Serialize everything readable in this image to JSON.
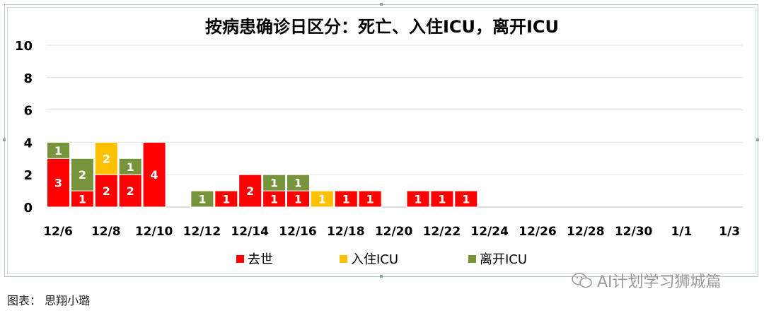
{
  "chart_data": {
    "type": "bar",
    "stacked": true,
    "title": "按病患确诊日区分：死亡、入住ICU，离开ICU",
    "x_tick_labels": [
      "12/6",
      "12/8",
      "12/10",
      "12/12",
      "12/14",
      "12/16",
      "12/18",
      "12/20",
      "12/22",
      "12/24",
      "12/26",
      "12/28",
      "12/30",
      "1/1",
      "1/3"
    ],
    "categories": [
      "12/6",
      "12/7",
      "12/8",
      "12/9",
      "12/10",
      "12/11",
      "12/12",
      "12/13",
      "12/14",
      "12/15",
      "12/16",
      "12/17",
      "12/18",
      "12/19",
      "12/20",
      "12/21",
      "12/22",
      "12/23",
      "12/24",
      "12/25",
      "12/26",
      "12/27",
      "12/28",
      "12/29",
      "12/30",
      "12/31",
      "1/1",
      "1/2",
      "1/3"
    ],
    "series": [
      {
        "name": "去世",
        "color": "#ff0000",
        "values": [
          3,
          1,
          2,
          2,
          4,
          0,
          0,
          1,
          2,
          1,
          1,
          0,
          1,
          1,
          0,
          1,
          1,
          1,
          0,
          0,
          0,
          0,
          0,
          0,
          0,
          0,
          0,
          0,
          0
        ]
      },
      {
        "name": "入住ICU",
        "color": "#ffc000",
        "values": [
          0,
          0,
          2,
          0,
          0,
          0,
          0,
          0,
          0,
          0,
          0,
          1,
          0,
          0,
          0,
          0,
          0,
          0,
          0,
          0,
          0,
          0,
          0,
          0,
          0,
          0,
          0,
          0,
          0
        ]
      },
      {
        "name": "离开ICU",
        "color": "#77933c",
        "values": [
          1,
          2,
          0,
          1,
          0,
          0,
          1,
          0,
          0,
          1,
          1,
          0,
          0,
          0,
          0,
          0,
          0,
          0,
          0,
          0,
          0,
          0,
          0,
          0,
          0,
          0,
          0,
          0,
          0
        ]
      }
    ],
    "ylim": [
      0,
      10
    ],
    "y_ticks": [
      0,
      2,
      4,
      6,
      8,
      10
    ],
    "grid": true,
    "legend_position": "bottom"
  },
  "caption": "图表： 思翔小璐",
  "watermark": "AI计划学习狮城篇"
}
